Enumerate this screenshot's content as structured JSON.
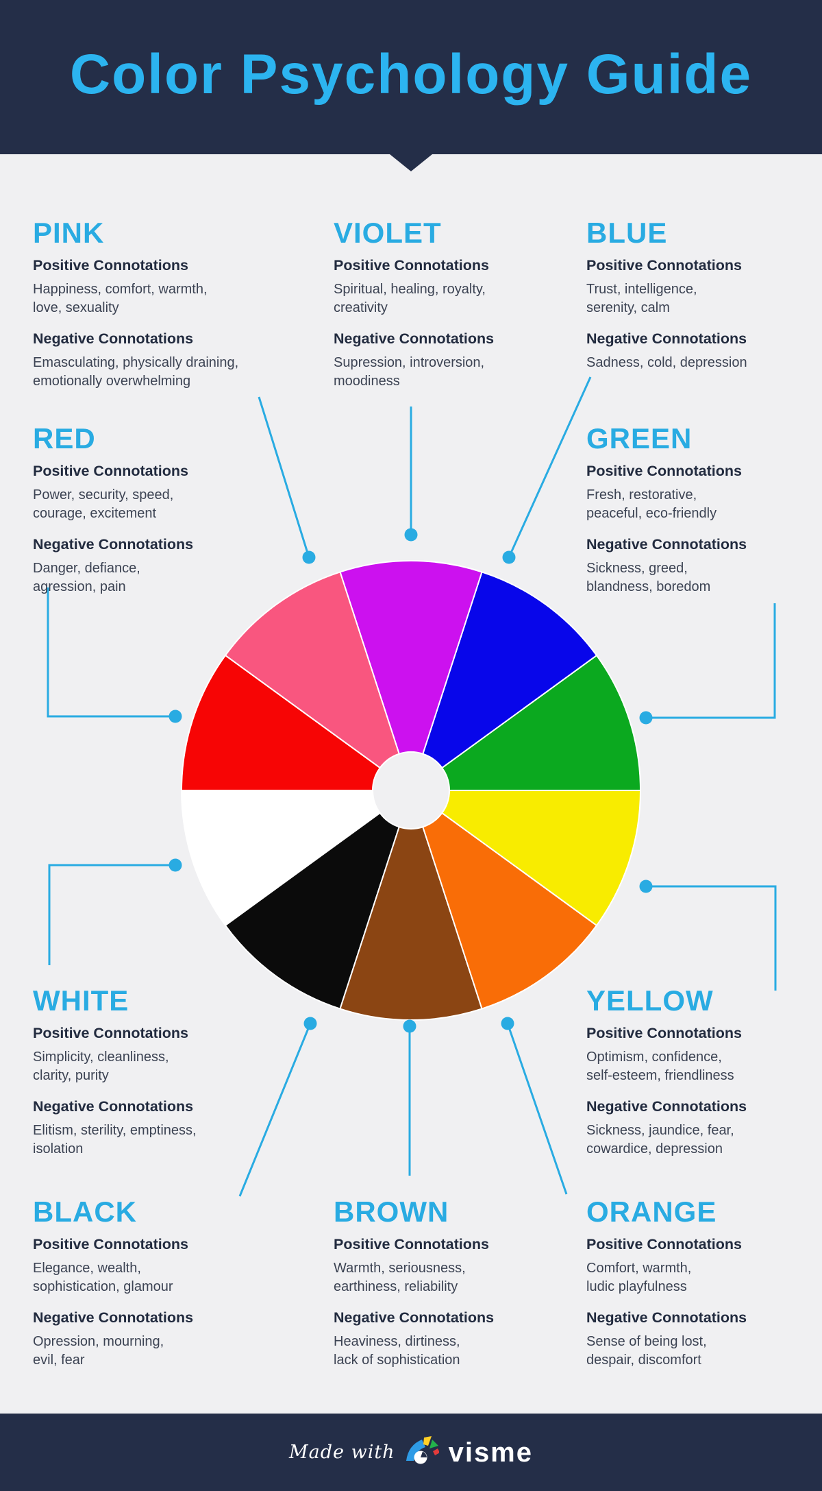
{
  "page": {
    "background": "#F0F0F2",
    "accent": "#29ABE2",
    "header": {
      "title": "Color Psychology Guide",
      "bg": "#242E48",
      "title_color": "#2CB4F0"
    },
    "footer": {
      "made_with": "Made with",
      "brand": "visme",
      "bg": "#242E48",
      "text_color": "#FFFFFF"
    }
  },
  "sections": [
    {
      "id": "pink",
      "name": "PINK",
      "positive_label": "Positive Connotations",
      "positive": "Happiness, comfort, warmth,\nlove, sexuality",
      "negative_label": "Negative Connotations",
      "negative": "Emasculating, physically draining,\nemotionally overwhelming"
    },
    {
      "id": "violet",
      "name": "VIOLET",
      "positive_label": "Positive Connotations",
      "positive": "Spiritual, healing, royalty,\ncreativity",
      "negative_label": "Negative Connotations",
      "negative": "Supression, introversion,\nmoodiness"
    },
    {
      "id": "blue",
      "name": "BLUE",
      "positive_label": "Positive Connotations",
      "positive": "Trust, intelligence,\nserenity, calm",
      "negative_label": "Negative Connotations",
      "negative": "Sadness, cold, depression"
    },
    {
      "id": "red",
      "name": "RED",
      "positive_label": "Positive Connotations",
      "positive": "Power, security, speed,\ncourage, excitement",
      "negative_label": "Negative Connotations",
      "negative": "Danger, defiance,\nagression, pain"
    },
    {
      "id": "green",
      "name": "GREEN",
      "positive_label": "Positive Connotations",
      "positive": "Fresh, restorative,\npeaceful, eco-friendly",
      "negative_label": "Negative Connotations",
      "negative": "Sickness, greed,\nblandness, boredom"
    },
    {
      "id": "white",
      "name": "WHITE",
      "positive_label": "Positive Connotations",
      "positive": "Simplicity, cleanliness,\nclarity, purity",
      "negative_label": "Negative Connotations",
      "negative": "Elitism, sterility, emptiness,\nisolation"
    },
    {
      "id": "yellow",
      "name": "YELLOW",
      "positive_label": "Positive Connotations",
      "positive": "Optimism, confidence,\nself-esteem, friendliness",
      "negative_label": "Negative Connotations",
      "negative": "Sickness, jaundice, fear,\ncowardice, depression"
    },
    {
      "id": "black",
      "name": "BLACK",
      "positive_label": "Positive Connotations",
      "positive": "Elegance, wealth,\nsophistication, glamour",
      "negative_label": "Negative Connotations",
      "negative": "Opression, mourning,\nevil, fear"
    },
    {
      "id": "brown",
      "name": "BROWN",
      "positive_label": "Positive Connotations",
      "positive": "Warmth, seriousness,\nearthiness, reliability",
      "negative_label": "Negative Connotations",
      "negative": "Heaviness, dirtiness,\nlack of sophistication"
    },
    {
      "id": "orange",
      "name": "ORANGE",
      "positive_label": "Positive Connotations",
      "positive": "Comfort, warmth,\nludic playfulness",
      "negative_label": "Negative Connotations",
      "negative": "Sense of being lost,\ndespair, discomfort"
    }
  ],
  "wheel": {
    "segments": [
      {
        "name": "green",
        "color": "#0BA91F"
      },
      {
        "name": "blue",
        "color": "#0806EA"
      },
      {
        "name": "violet",
        "color": "#CC11EF"
      },
      {
        "name": "pink",
        "color": "#F9567F"
      },
      {
        "name": "red",
        "color": "#F70505"
      },
      {
        "name": "white",
        "color": "#FFFFFF"
      },
      {
        "name": "black",
        "color": "#0B0B0B"
      },
      {
        "name": "brown",
        "color": "#8B4513"
      },
      {
        "name": "orange",
        "color": "#F96D07"
      },
      {
        "name": "yellow",
        "color": "#F8EC00"
      }
    ]
  }
}
